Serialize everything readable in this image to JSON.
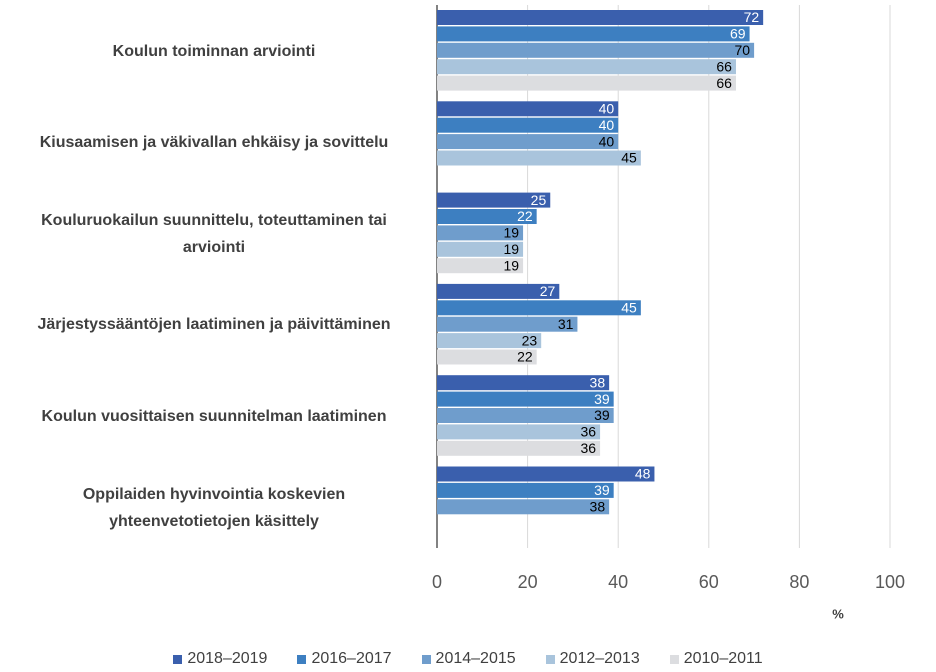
{
  "chart_data": {
    "type": "bar",
    "orientation": "horizontal",
    "categories": [
      "Koulun toiminnan arviointi",
      "Kiusaamisen ja väkivallan ehkäisy ja sovittelu",
      "Kouluruokailun suunnittelu, toteuttaminen tai arviointi",
      "Järjestyssääntöjen laatiminen ja päivittäminen",
      "Koulun vuosittaisen suunnitelman laatiminen",
      "Oppilaiden hyvinvointia koskevien yhteenvetotietojen käsittely"
    ],
    "series": [
      {
        "name": "2018–2019",
        "color": "#3a5fad",
        "label_color": "#ffffff",
        "values": [
          72,
          40,
          25,
          27,
          38,
          48
        ]
      },
      {
        "name": "2016–2017",
        "color": "#3d7fc1",
        "label_color": "#ffffff",
        "values": [
          69,
          40,
          22,
          45,
          39,
          39
        ]
      },
      {
        "name": "2014–2015",
        "color": "#6f9dcc",
        "label_color": "#000000",
        "values": [
          70,
          40,
          19,
          31,
          39,
          38
        ]
      },
      {
        "name": "2012–2013",
        "color": "#a9c4dc",
        "label_color": "#000000",
        "values": [
          66,
          45,
          19,
          23,
          36,
          null
        ]
      },
      {
        "name": "2010–2011",
        "color": "#dcdde0",
        "label_color": "#000000",
        "values": [
          66,
          null,
          19,
          22,
          36,
          null
        ]
      }
    ],
    "xlabel": "%",
    "xlim": [
      0,
      100
    ],
    "xticks": [
      0,
      20,
      40,
      60,
      80,
      100
    ],
    "grid": true,
    "legend": "bottom"
  }
}
